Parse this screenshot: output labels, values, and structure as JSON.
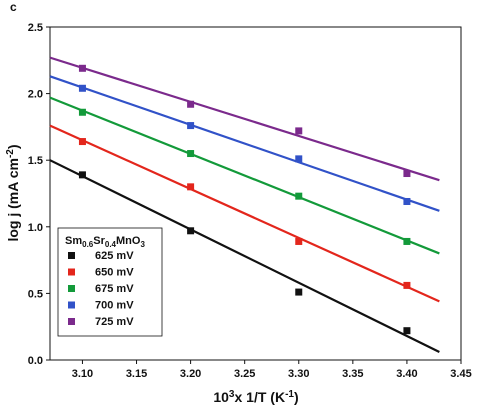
{
  "panel_label": "c",
  "chart_data": {
    "type": "scatter",
    "xlabel": "10³x 1/T (K⁻¹)",
    "ylabel": "log j (mA cm⁻²)",
    "xlim": [
      3.07,
      3.45
    ],
    "ylim": [
      0.0,
      2.5
    ],
    "xticks": [
      "3.10",
      "3.15",
      "3.20",
      "3.25",
      "3.30",
      "3.35",
      "3.40",
      "3.45"
    ],
    "yticks": [
      "0.0",
      "0.5",
      "1.0",
      "1.5",
      "2.0",
      "2.5"
    ],
    "legend": {
      "title": "Sm0.6Sr0.4MnO3",
      "placement": "bottom-left"
    },
    "series": [
      {
        "name": "625 mV",
        "color": "#111111",
        "x": [
          3.1,
          3.2,
          3.3,
          3.4
        ],
        "y": [
          1.39,
          0.97,
          0.51,
          0.22
        ],
        "fit": [
          [
            3.07,
            1.5
          ],
          [
            3.43,
            0.06
          ]
        ]
      },
      {
        "name": "650 mV",
        "color": "#e3261c",
        "x": [
          3.1,
          3.2,
          3.3,
          3.4
        ],
        "y": [
          1.64,
          1.3,
          0.89,
          0.56
        ],
        "fit": [
          [
            3.07,
            1.76
          ],
          [
            3.43,
            0.44
          ]
        ]
      },
      {
        "name": "675 mV",
        "color": "#139a3a",
        "x": [
          3.1,
          3.2,
          3.3,
          3.4
        ],
        "y": [
          1.86,
          1.55,
          1.23,
          0.89
        ],
        "fit": [
          [
            3.07,
            1.97
          ],
          [
            3.43,
            0.8
          ]
        ]
      },
      {
        "name": "700 mV",
        "color": "#3152c8",
        "x": [
          3.1,
          3.2,
          3.3,
          3.4
        ],
        "y": [
          2.04,
          1.76,
          1.51,
          1.19
        ],
        "fit": [
          [
            3.07,
            2.13
          ],
          [
            3.43,
            1.12
          ]
        ]
      },
      {
        "name": "725 mV",
        "color": "#7b2a8c",
        "x": [
          3.1,
          3.2,
          3.3,
          3.4
        ],
        "y": [
          2.19,
          1.92,
          1.72,
          1.4
        ],
        "fit": [
          [
            3.07,
            2.27
          ],
          [
            3.43,
            1.35
          ]
        ]
      }
    ]
  }
}
